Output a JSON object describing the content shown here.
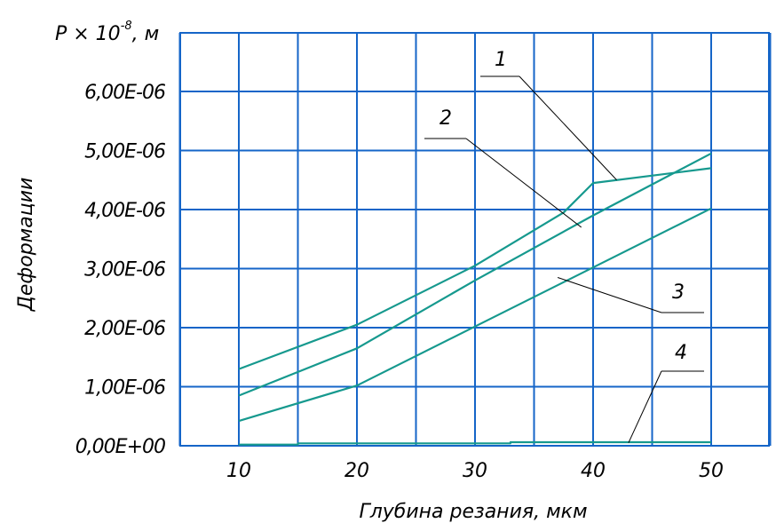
{
  "chart_data": {
    "type": "line",
    "ylabel_top": "P × 10",
    "ylabel_top_exp": "-8",
    "ylabel_top_unit": ", м",
    "ylabel": "Деформации",
    "xlabel": "Глубина резания, мкм",
    "xlim": [
      5,
      55
    ],
    "ylim": [
      0,
      7e-06
    ],
    "xticks": [
      10,
      20,
      30,
      40,
      50
    ],
    "xtick_labels": [
      "10",
      "20",
      "30",
      "40",
      "50"
    ],
    "yticks": [
      0,
      1e-06,
      2e-06,
      3e-06,
      4e-06,
      5e-06,
      6e-06
    ],
    "ytick_labels": [
      "0,00E+00",
      "1,00E-06",
      "2,00E-06",
      "3,00E-06",
      "4,00E-06",
      "5,00E-06",
      "6,00E-06"
    ],
    "grid": true,
    "colors": {
      "grid": "#1565c8",
      "series": "#16998e",
      "leader": "#000000"
    },
    "series": [
      {
        "name": "1",
        "x": [
          10,
          20,
          30,
          37.5,
          40,
          50
        ],
        "y": [
          1.3e-06,
          2.05e-06,
          3.05e-06,
          3.95e-06,
          4.45e-06,
          4.7e-06
        ]
      },
      {
        "name": "2",
        "x": [
          10,
          20,
          30,
          40,
          50
        ],
        "y": [
          8.5e-07,
          1.65e-06,
          2.8e-06,
          3.9e-06,
          4.95e-06
        ]
      },
      {
        "name": "3",
        "x": [
          10,
          20,
          30,
          40,
          50
        ],
        "y": [
          4.2e-07,
          1.02e-06,
          2.02e-06,
          3.02e-06,
          4.02e-06
        ]
      },
      {
        "name": "4",
        "x": [
          10,
          15,
          15,
          33,
          33,
          50
        ],
        "y": [
          2e-08,
          2e-08,
          4e-08,
          4e-08,
          6e-08,
          6e-08
        ]
      }
    ],
    "annotations": [
      {
        "text": "1",
        "points_to": [
          42,
          4.5e-06
        ]
      },
      {
        "text": "2",
        "points_to": [
          39,
          3.7e-06
        ]
      },
      {
        "text": "3",
        "points_to": [
          37,
          2.85e-06
        ]
      },
      {
        "text": "4",
        "points_to": [
          43,
          5e-08
        ]
      }
    ]
  }
}
